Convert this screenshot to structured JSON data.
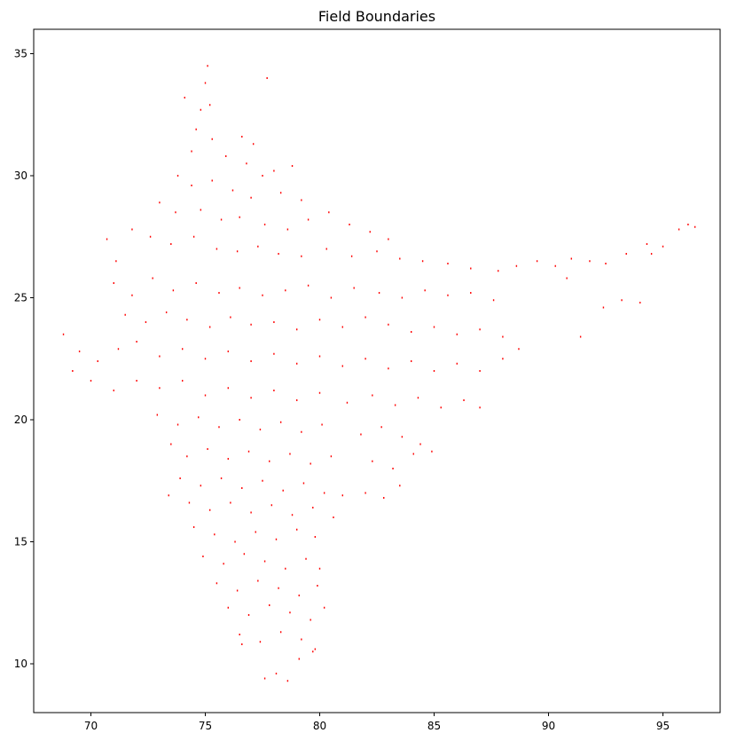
{
  "chart_data": {
    "type": "scatter",
    "title": "Field Boundaries",
    "xlabel": "",
    "ylabel": "",
    "xlim": [
      67.5,
      97.5
    ],
    "ylim": [
      8.0,
      36.0
    ],
    "xticks": [
      70,
      75,
      80,
      85,
      90,
      95
    ],
    "yticks": [
      10,
      15,
      20,
      25,
      30,
      35
    ],
    "grid": false,
    "marker_color": "#ff0000",
    "series": [
      {
        "points": [
          [
            75.1,
            34.5
          ],
          [
            75.0,
            33.8
          ],
          [
            77.7,
            34.0
          ],
          [
            74.1,
            33.2
          ],
          [
            74.8,
            32.7
          ],
          [
            75.2,
            32.9
          ],
          [
            74.6,
            31.9
          ],
          [
            75.3,
            31.5
          ],
          [
            76.6,
            31.6
          ],
          [
            77.1,
            31.3
          ],
          [
            74.4,
            31.0
          ],
          [
            75.9,
            30.8
          ],
          [
            76.8,
            30.5
          ],
          [
            78.0,
            30.2
          ],
          [
            78.8,
            30.4
          ],
          [
            77.5,
            30.0
          ],
          [
            73.8,
            30.0
          ],
          [
            74.4,
            29.6
          ],
          [
            75.3,
            29.8
          ],
          [
            76.2,
            29.4
          ],
          [
            77.0,
            29.1
          ],
          [
            78.3,
            29.3
          ],
          [
            79.2,
            29.0
          ],
          [
            73.0,
            28.9
          ],
          [
            73.7,
            28.5
          ],
          [
            74.8,
            28.6
          ],
          [
            75.7,
            28.2
          ],
          [
            76.5,
            28.3
          ],
          [
            77.6,
            28.0
          ],
          [
            78.6,
            27.8
          ],
          [
            79.5,
            28.2
          ],
          [
            80.4,
            28.5
          ],
          [
            81.3,
            28.0
          ],
          [
            82.2,
            27.7
          ],
          [
            83.0,
            27.4
          ],
          [
            71.8,
            27.8
          ],
          [
            72.6,
            27.5
          ],
          [
            73.5,
            27.2
          ],
          [
            74.5,
            27.5
          ],
          [
            75.5,
            27.0
          ],
          [
            76.4,
            26.9
          ],
          [
            77.3,
            27.1
          ],
          [
            78.2,
            26.8
          ],
          [
            79.2,
            26.7
          ],
          [
            80.3,
            27.0
          ],
          [
            81.4,
            26.7
          ],
          [
            82.5,
            26.9
          ],
          [
            83.5,
            26.6
          ],
          [
            84.5,
            26.5
          ],
          [
            85.6,
            26.4
          ],
          [
            86.6,
            26.2
          ],
          [
            87.8,
            26.1
          ],
          [
            88.6,
            26.3
          ],
          [
            70.7,
            27.4
          ],
          [
            71.1,
            26.5
          ],
          [
            71.0,
            25.6
          ],
          [
            71.8,
            25.1
          ],
          [
            72.7,
            25.8
          ],
          [
            73.6,
            25.3
          ],
          [
            74.6,
            25.6
          ],
          [
            75.6,
            25.2
          ],
          [
            76.5,
            25.4
          ],
          [
            77.5,
            25.1
          ],
          [
            78.5,
            25.3
          ],
          [
            79.5,
            25.5
          ],
          [
            80.5,
            25.0
          ],
          [
            81.5,
            25.4
          ],
          [
            82.6,
            25.2
          ],
          [
            83.6,
            25.0
          ],
          [
            84.6,
            25.3
          ],
          [
            85.6,
            25.1
          ],
          [
            86.6,
            25.2
          ],
          [
            87.6,
            24.9
          ],
          [
            71.5,
            24.3
          ],
          [
            72.4,
            24.0
          ],
          [
            73.3,
            24.4
          ],
          [
            74.2,
            24.1
          ],
          [
            75.2,
            23.8
          ],
          [
            76.1,
            24.2
          ],
          [
            77.0,
            23.9
          ],
          [
            78.0,
            24.0
          ],
          [
            79.0,
            23.7
          ],
          [
            80.0,
            24.1
          ],
          [
            81.0,
            23.8
          ],
          [
            82.0,
            24.2
          ],
          [
            83.0,
            23.9
          ],
          [
            84.0,
            23.6
          ],
          [
            85.0,
            23.8
          ],
          [
            86.0,
            23.5
          ],
          [
            87.0,
            23.7
          ],
          [
            88.0,
            23.4
          ],
          [
            68.8,
            23.5
          ],
          [
            69.5,
            22.8
          ],
          [
            70.3,
            22.4
          ],
          [
            71.2,
            22.9
          ],
          [
            72.0,
            23.2
          ],
          [
            73.0,
            22.6
          ],
          [
            74.0,
            22.9
          ],
          [
            75.0,
            22.5
          ],
          [
            76.0,
            22.8
          ],
          [
            77.0,
            22.4
          ],
          [
            78.0,
            22.7
          ],
          [
            79.0,
            22.3
          ],
          [
            80.0,
            22.6
          ],
          [
            81.0,
            22.2
          ],
          [
            82.0,
            22.5
          ],
          [
            83.0,
            22.1
          ],
          [
            84.0,
            22.4
          ],
          [
            85.0,
            22.0
          ],
          [
            86.0,
            22.3
          ],
          [
            87.0,
            22.0
          ],
          [
            88.0,
            22.5
          ],
          [
            88.7,
            22.9
          ],
          [
            69.2,
            22.0
          ],
          [
            70.0,
            21.6
          ],
          [
            71.0,
            21.2
          ],
          [
            72.0,
            21.6
          ],
          [
            73.0,
            21.3
          ],
          [
            74.0,
            21.6
          ],
          [
            75.0,
            21.0
          ],
          [
            76.0,
            21.3
          ],
          [
            77.0,
            20.9
          ],
          [
            78.0,
            21.2
          ],
          [
            79.0,
            20.8
          ],
          [
            80.0,
            21.1
          ],
          [
            81.2,
            20.7
          ],
          [
            82.3,
            21.0
          ],
          [
            83.3,
            20.6
          ],
          [
            84.3,
            20.9
          ],
          [
            85.3,
            20.5
          ],
          [
            86.3,
            20.8
          ],
          [
            87.0,
            20.5
          ],
          [
            72.9,
            20.2
          ],
          [
            73.8,
            19.8
          ],
          [
            74.7,
            20.1
          ],
          [
            75.6,
            19.7
          ],
          [
            76.5,
            20.0
          ],
          [
            77.4,
            19.6
          ],
          [
            78.3,
            19.9
          ],
          [
            79.2,
            19.5
          ],
          [
            80.1,
            19.8
          ],
          [
            81.8,
            19.4
          ],
          [
            82.7,
            19.7
          ],
          [
            83.6,
            19.3
          ],
          [
            84.4,
            19.0
          ],
          [
            73.5,
            19.0
          ],
          [
            74.2,
            18.5
          ],
          [
            75.1,
            18.8
          ],
          [
            76.0,
            18.4
          ],
          [
            76.9,
            18.7
          ],
          [
            77.8,
            18.3
          ],
          [
            78.7,
            18.6
          ],
          [
            79.6,
            18.2
          ],
          [
            80.5,
            18.5
          ],
          [
            82.3,
            18.3
          ],
          [
            83.2,
            18.0
          ],
          [
            84.1,
            18.6
          ],
          [
            84.9,
            18.7
          ],
          [
            73.9,
            17.6
          ],
          [
            74.8,
            17.3
          ],
          [
            75.7,
            17.6
          ],
          [
            76.6,
            17.2
          ],
          [
            77.5,
            17.5
          ],
          [
            78.4,
            17.1
          ],
          [
            79.3,
            17.4
          ],
          [
            80.2,
            17.0
          ],
          [
            81.0,
            16.9
          ],
          [
            82.0,
            17.0
          ],
          [
            82.8,
            16.8
          ],
          [
            83.5,
            17.3
          ],
          [
            73.4,
            16.9
          ],
          [
            74.3,
            16.6
          ],
          [
            75.2,
            16.3
          ],
          [
            76.1,
            16.6
          ],
          [
            77.0,
            16.2
          ],
          [
            77.9,
            16.5
          ],
          [
            78.8,
            16.1
          ],
          [
            79.7,
            16.4
          ],
          [
            80.6,
            16.0
          ],
          [
            74.5,
            15.6
          ],
          [
            75.4,
            15.3
          ],
          [
            76.3,
            15.0
          ],
          [
            77.2,
            15.4
          ],
          [
            78.1,
            15.1
          ],
          [
            79.0,
            15.5
          ],
          [
            79.8,
            15.2
          ],
          [
            74.9,
            14.4
          ],
          [
            75.8,
            14.1
          ],
          [
            76.7,
            14.5
          ],
          [
            77.6,
            14.2
          ],
          [
            78.5,
            13.9
          ],
          [
            79.4,
            14.3
          ],
          [
            80.0,
            13.9
          ],
          [
            75.5,
            13.3
          ],
          [
            76.4,
            13.0
          ],
          [
            77.3,
            13.4
          ],
          [
            78.2,
            13.1
          ],
          [
            79.1,
            12.8
          ],
          [
            79.9,
            13.2
          ],
          [
            76.0,
            12.3
          ],
          [
            76.9,
            12.0
          ],
          [
            77.8,
            12.4
          ],
          [
            78.7,
            12.1
          ],
          [
            79.6,
            11.8
          ],
          [
            80.2,
            12.3
          ],
          [
            76.5,
            11.2
          ],
          [
            77.4,
            10.9
          ],
          [
            78.3,
            11.3
          ],
          [
            79.2,
            11.0
          ],
          [
            79.8,
            10.6
          ],
          [
            76.6,
            10.8
          ],
          [
            79.1,
            10.2
          ],
          [
            79.7,
            10.5
          ],
          [
            77.6,
            9.4
          ],
          [
            78.1,
            9.6
          ],
          [
            78.6,
            9.3
          ],
          [
            89.5,
            26.5
          ],
          [
            90.3,
            26.3
          ],
          [
            91.0,
            26.6
          ],
          [
            91.8,
            26.5
          ],
          [
            92.5,
            26.4
          ],
          [
            93.4,
            26.8
          ],
          [
            94.3,
            27.2
          ],
          [
            95.0,
            27.1
          ],
          [
            95.7,
            27.8
          ],
          [
            96.1,
            28.0
          ],
          [
            96.4,
            27.9
          ],
          [
            94.5,
            26.8
          ],
          [
            90.8,
            25.8
          ],
          [
            92.4,
            24.6
          ],
          [
            93.2,
            24.9
          ],
          [
            94.0,
            24.8
          ],
          [
            91.4,
            23.4
          ]
        ]
      }
    ]
  }
}
